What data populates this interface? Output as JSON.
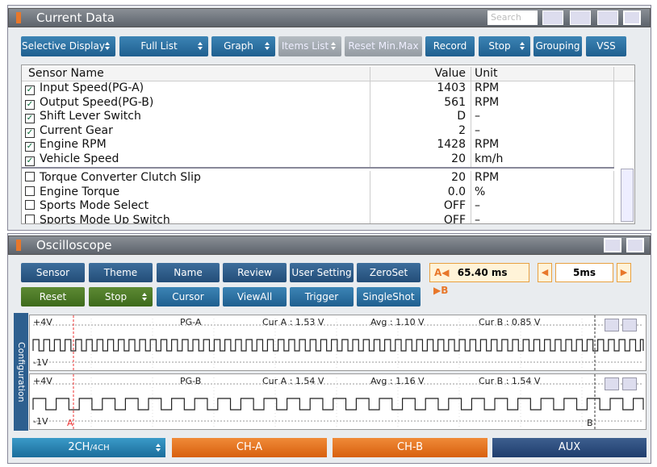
{
  "current_data": {
    "title": "Current Data",
    "search_placeholder": "Search",
    "toolbar": [
      {
        "label": "Selective Display",
        "dropdown": true
      },
      {
        "label": "Full List",
        "dropdown": true
      },
      {
        "label": "Graph",
        "dropdown": true
      },
      {
        "label": "Items List",
        "dropdown": true,
        "disabled": true
      },
      {
        "label": "Reset Min.Max",
        "disabled": true
      },
      {
        "label": "Record"
      },
      {
        "label": "Stop",
        "dropdown": true
      },
      {
        "label": "Grouping"
      },
      {
        "label": "VSS"
      }
    ],
    "table": {
      "headers": [
        "Sensor Name",
        "Value",
        "Unit"
      ],
      "rows": [
        {
          "name": "Input Speed(PG-A)",
          "value": "1403",
          "unit": "RPM",
          "checked": true
        },
        {
          "name": "Output Speed(PG-B)",
          "value": "561",
          "unit": "RPM",
          "checked": true
        },
        {
          "name": "Shift Lever Switch",
          "value": "D",
          "unit": "–",
          "checked": true
        },
        {
          "name": "Current Gear",
          "value": "2",
          "unit": "–",
          "checked": true
        },
        {
          "name": "Engine RPM",
          "value": "1428",
          "unit": "RPM",
          "checked": true
        },
        {
          "name": "Vehicle Speed",
          "value": "20",
          "unit": "km/h",
          "checked": true
        },
        {
          "name": "Torque Converter Clutch Slip",
          "value": "20",
          "unit": "RPM",
          "checked": false
        },
        {
          "name": "Engine Torque",
          "value": "0.0",
          "unit": "%",
          "checked": false
        },
        {
          "name": "Sports Mode Select",
          "value": "OFF",
          "unit": "–",
          "checked": false
        },
        {
          "name": "Sports Mode Up Switch",
          "value": "OFF",
          "unit": "–",
          "checked": false
        }
      ]
    }
  },
  "oscilloscope": {
    "title": "Oscilloscope",
    "buttons_row1": [
      "Sensor",
      "Theme",
      "Name",
      "Review",
      "User Setting",
      "ZeroSet"
    ],
    "buttons_row2": [
      {
        "label": "Reset",
        "color": "green"
      },
      {
        "label": "Stop",
        "color": "green",
        "dropdown": true
      },
      {
        "label": "Cursor"
      },
      {
        "label": "ViewAll"
      },
      {
        "label": "Trigger"
      },
      {
        "label": "SingleShot"
      }
    ],
    "cursor_time": "65.40 ms",
    "cursor_a": "A",
    "cursor_b": "B",
    "time_div": "5ms",
    "side_label": "Configuration",
    "channels": [
      {
        "top": "+4V",
        "bottom": "-1V",
        "name": "PG-A",
        "cur_a": "Cur A : 1.53 V",
        "avg": "Avg : 1.10 V",
        "cur_b": "Cur B : 0.85 V"
      },
      {
        "top": "+4V",
        "bottom": "-1V",
        "name": "PG-B",
        "cur_a": "Cur A : 1.54 V",
        "avg": "Avg : 1.16 V",
        "cur_b": "Cur B : 1.54 V"
      }
    ],
    "tabs": {
      "mode": "2CH",
      "mode_alt": "/4CH",
      "ch_a": "CH-A",
      "ch_b": "CH-B",
      "aux": "AUX"
    }
  }
}
